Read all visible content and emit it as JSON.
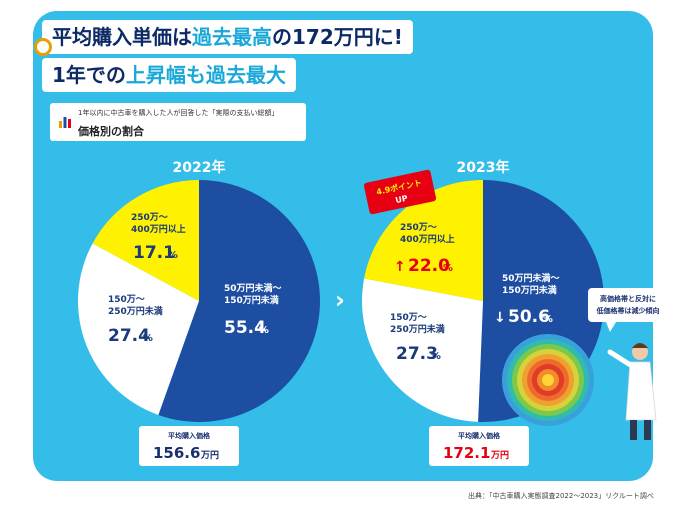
{
  "headline": {
    "line1_pre": "平均購入単価は",
    "line1_hi": "過去最高",
    "line1_post": "の172万円に!",
    "line2_pre": "1年での",
    "line2_hi": "上昇幅も過去最大"
  },
  "legend": {
    "small": "1年以内に中古車を購入した人が回答した「実際の支払い総額」",
    "title": "価格別の割合"
  },
  "arrow_glyph": "›",
  "callout": {
    "badge_line1": "4.9ポイント",
    "badge_line2": "UP",
    "bubble_line1": "高価格帯と反対に",
    "bubble_line2": "低価格帯は減少傾向"
  },
  "source": "出典：「中古車購入実態調査2022～2023」リクルート調べ",
  "colors": {
    "panel": "#33bde8",
    "navy": "#1d4ea2",
    "white": "#ffffff",
    "yellow": "#fff200",
    "text_dark": "#0b2a66",
    "accent_red": "#e60012"
  },
  "chart_data": [
    {
      "type": "pie",
      "title": "2022年",
      "slices": [
        {
          "label_line1": "50万円未満～",
          "label_line2": "150万円未満",
          "value": 55.4,
          "value_text": "55.4",
          "unit": "%",
          "color": "#1d4ea2",
          "text_color": "#ffffff",
          "arrow": ""
        },
        {
          "label_line1": "150万～",
          "label_line2": "250万円未満",
          "value": 27.4,
          "value_text": "27.4",
          "unit": "%",
          "color": "#ffffff",
          "text_color": "#1a3a7a",
          "arrow": ""
        },
        {
          "label_line1": "250万～",
          "label_line2": "400万円以上",
          "value": 17.1,
          "value_text": "17.1",
          "unit": "%",
          "color": "#fff200",
          "text_color": "#1a3a7a",
          "arrow": ""
        }
      ],
      "price_label": "平均購入価格",
      "price_value": "156.6",
      "price_unit": "万円",
      "price_color": "#1a2f6e"
    },
    {
      "type": "pie",
      "title": "2023年",
      "slices": [
        {
          "label_line1": "50万円未満～",
          "label_line2": "150万円未満",
          "value": 50.6,
          "value_text": "50.6",
          "unit": "%",
          "color": "#1d4ea2",
          "text_color": "#ffffff",
          "arrow": "↓"
        },
        {
          "label_line1": "150万～",
          "label_line2": "250万円未満",
          "value": 27.3,
          "value_text": "27.3",
          "unit": "%",
          "color": "#ffffff",
          "text_color": "#1a3a7a",
          "arrow": ""
        },
        {
          "label_line1": "250万～",
          "label_line2": "400万円以上",
          "value": 22.0,
          "value_text": "22.0",
          "unit": "%",
          "color": "#fff200",
          "text_color": "#1a3a7a",
          "arrow": "↑"
        }
      ],
      "price_label": "平均購入価格",
      "price_value": "172.1",
      "price_unit": "万円",
      "price_color": "#e60012"
    }
  ]
}
